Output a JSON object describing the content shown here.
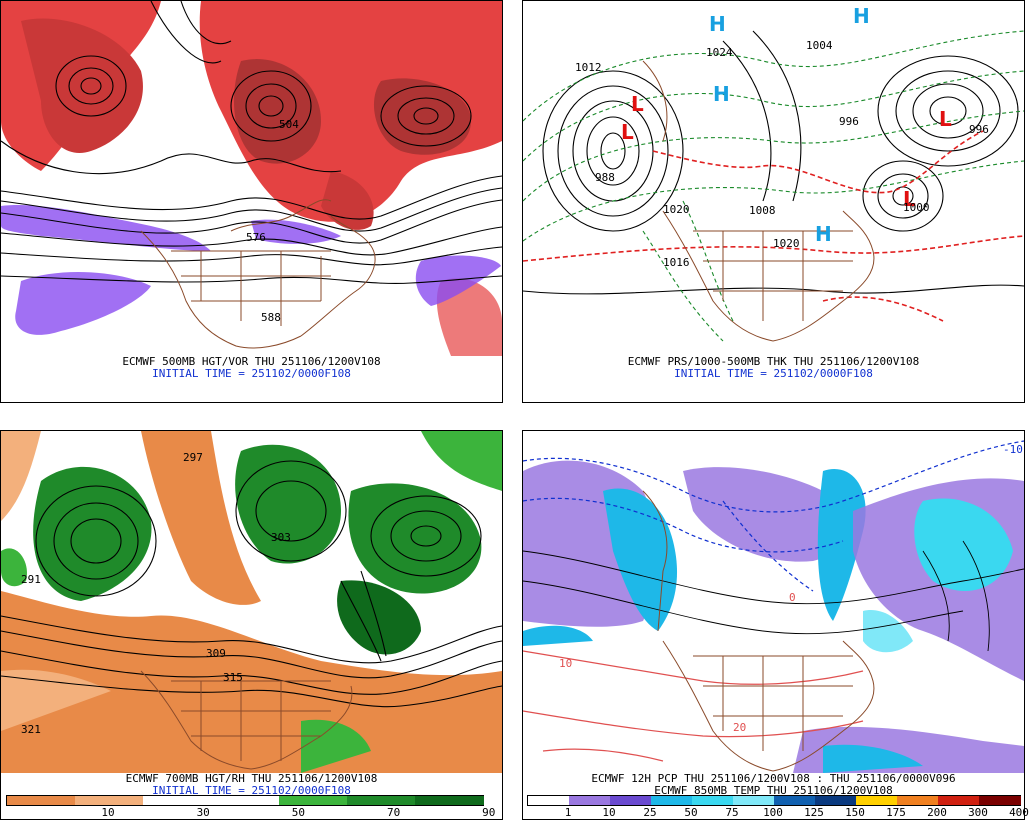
{
  "panels": [
    {
      "id": "p1",
      "caption_line1": "ECMWF 500MB HGT/VOR THU 251106/1200V108",
      "caption_line2": "INITIAL TIME = 251102/0000F108",
      "contour_labels": [
        "576",
        "588",
        "504"
      ]
    },
    {
      "id": "p2",
      "caption_line1": "ECMWF PRS/1000-500MB THK THU 251106/1200V108",
      "caption_line2": "INITIAL TIME = 251102/0000F108",
      "pressure_labels": [
        "1012",
        "1020",
        "1004",
        "996",
        "1024",
        "1020",
        "1008",
        "988",
        "996",
        "1000",
        "1016"
      ],
      "highs_lows": [
        {
          "symbol": "H",
          "color": "#18a0e0"
        },
        {
          "symbol": "H",
          "color": "#18a0e0"
        },
        {
          "symbol": "H",
          "color": "#18a0e0"
        },
        {
          "symbol": "H",
          "color": "#18a0e0"
        },
        {
          "symbol": "L",
          "color": "#e01010"
        },
        {
          "symbol": "L",
          "color": "#e01010"
        },
        {
          "symbol": "L",
          "color": "#e01010"
        },
        {
          "symbol": "L",
          "color": "#e01010"
        }
      ]
    },
    {
      "id": "p3",
      "caption_line1": "ECMWF 700MB HGT/RH THU 251106/1200V108",
      "caption_line2": "INITIAL TIME = 251102/0000F108",
      "contour_labels": [
        "309",
        "315",
        "321",
        "291",
        "297",
        "303"
      ],
      "colorbar": {
        "ticks": [
          "10",
          "30",
          "50",
          "70",
          "90"
        ],
        "colors": [
          "#e88a48",
          "#f3b07c",
          "#ffffff",
          "#ffffff",
          "#3cb43c",
          "#1f8a2a",
          "#0f6a1c"
        ]
      }
    },
    {
      "id": "p4",
      "caption_line1": "ECMWF 12H PCP THU 251106/1200V108 : THU 251106/0000V096",
      "caption_line2": "ECMWF 850MB TEMP THU 251106/1200V108",
      "contour_labels": [
        "10",
        "0",
        "20",
        "-10"
      ],
      "colorbar": {
        "ticks": [
          "1",
          "10",
          "25",
          "50",
          "75",
          "100",
          "125",
          "150",
          "175",
          "200",
          "300",
          "400"
        ],
        "colors": [
          "#ffffff",
          "#9a78e0",
          "#6a4ad0",
          "#1eb8e8",
          "#3ad8f0",
          "#80e8f8",
          "#1060b0",
          "#0a3a80",
          "#ffd000",
          "#f08020",
          "#d02010",
          "#7a0000"
        ]
      }
    }
  ],
  "colors": {
    "vorticity": "#e02020",
    "negative_vorticity": "#8a4cf0",
    "coastline": "#8a4a2a",
    "contour": "#000000",
    "thickness_warm": "#e02020",
    "thickness_cold": "#1a8a2a",
    "rh_dry": "#e88a48",
    "rh_moist": "#1f8a2a",
    "precip": "#9a78e0",
    "temp_pos": "#e05050",
    "temp_neg": "#1030d0"
  }
}
